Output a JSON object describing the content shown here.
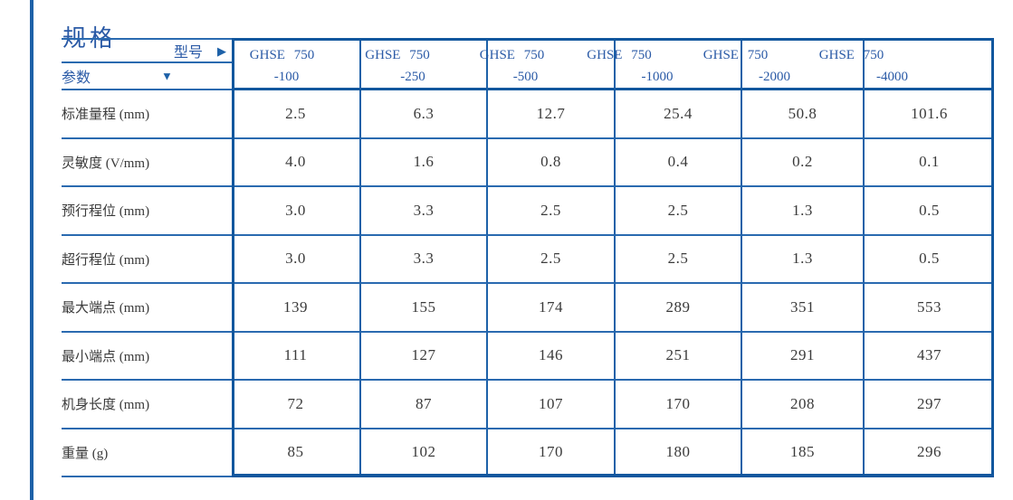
{
  "title": "规格",
  "table": {
    "corner": {
      "model_label": "型号",
      "model_arrow": "▶",
      "param_label": "参数",
      "param_arrow": "▼"
    },
    "columns": [
      {
        "model": "GHSE 750",
        "variant": "-100"
      },
      {
        "model": "GHSE 750",
        "variant": "-250"
      },
      {
        "model": "GHSE 750",
        "variant": "-500"
      },
      {
        "model": "GHSE 750",
        "variant": "-1000"
      },
      {
        "model": "GHSE 750",
        "variant": "-2000"
      },
      {
        "model": "GHSE 750",
        "variant": "-4000"
      }
    ],
    "rows": [
      {
        "label": "标准量程 (mm)",
        "values": [
          "2.5",
          "6.3",
          "12.7",
          "25.4",
          "50.8",
          "101.6"
        ]
      },
      {
        "label": "灵敏度 (V/mm)",
        "values": [
          "4.0",
          "1.6",
          "0.8",
          "0.4",
          "0.2",
          "0.1"
        ]
      },
      {
        "label": "预行程位 (mm)",
        "values": [
          "3.0",
          "3.3",
          "2.5",
          "2.5",
          "1.3",
          "0.5"
        ]
      },
      {
        "label": "超行程位 (mm)",
        "values": [
          "3.0",
          "3.3",
          "2.5",
          "2.5",
          "1.3",
          "0.5"
        ]
      },
      {
        "label": "最大端点 (mm)",
        "values": [
          "139",
          "155",
          "174",
          "289",
          "351",
          "553"
        ]
      },
      {
        "label": "最小端点 (mm)",
        "values": [
          "111",
          "127",
          "146",
          "251",
          "291",
          "437"
        ]
      },
      {
        "label": "机身长度 (mm)",
        "values": [
          "72",
          "87",
          "107",
          "170",
          "208",
          "297"
        ]
      },
      {
        "label": "重量 (g)",
        "values": [
          "85",
          "102",
          "170",
          "180",
          "185",
          "296"
        ]
      }
    ]
  },
  "colors": {
    "accent": "#2a5aa6",
    "border-thick": "#12579e",
    "border-mid": "#1d61a8",
    "border-thin": "#2a6ab0",
    "text": "#3a3a3a"
  }
}
